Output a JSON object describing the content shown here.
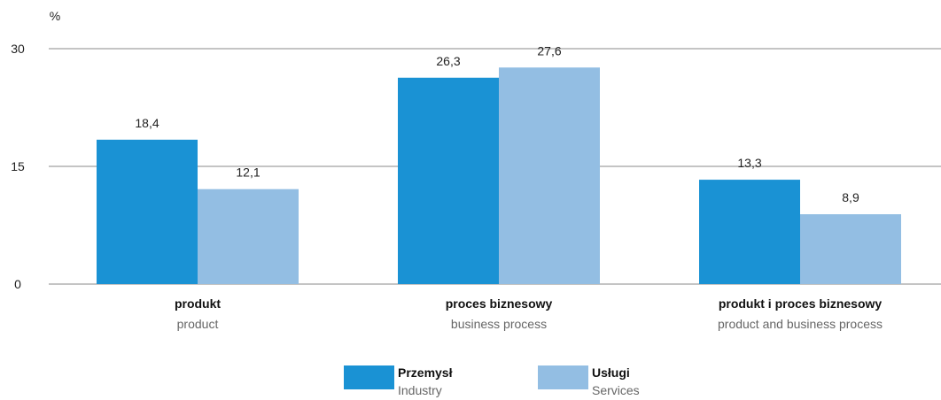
{
  "chart_data": {
    "type": "bar",
    "unit_label": "%",
    "ylim": [
      0,
      30
    ],
    "yticks": [
      "0",
      "15",
      "30"
    ],
    "grid": true,
    "legend_position": "bottom-center",
    "categories": [
      {
        "main": "produkt",
        "sub": "product"
      },
      {
        "main": "proces biznesowy",
        "sub": "business process"
      },
      {
        "main": "produkt i proces biznesowy",
        "sub": "product and business process"
      }
    ],
    "series": [
      {
        "name": "Przemysł",
        "name_en": "Industry",
        "color": "#1a92d4",
        "values": [
          18.4,
          26.3,
          13.3
        ],
        "labels": [
          "18,4",
          "26,3",
          "13,3"
        ]
      },
      {
        "name": "Usługi",
        "name_en": "Services",
        "color": "#93bee3",
        "values": [
          12.1,
          27.6,
          8.9
        ],
        "labels": [
          "12,1",
          "27,6",
          "8,9"
        ]
      }
    ]
  }
}
